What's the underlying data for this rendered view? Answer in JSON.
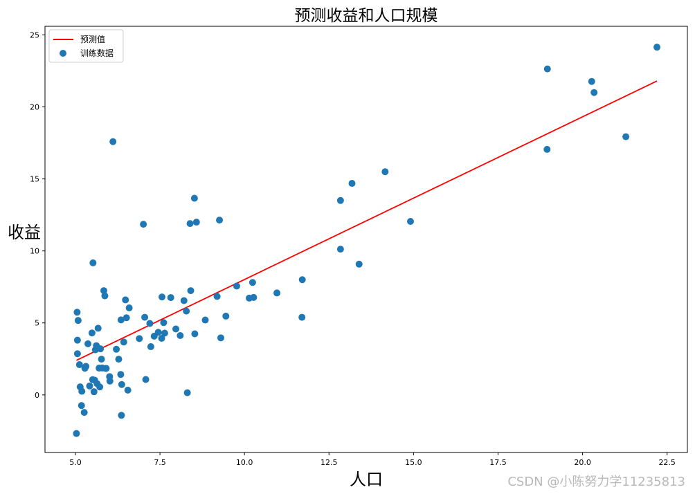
{
  "chart_data": {
    "type": "scatter",
    "title": "预测收益和人口规模",
    "xlabel": "人口",
    "ylabel": "收益",
    "xlim": [
      4.1,
      23.1
    ],
    "ylim": [
      -4.0,
      25.6
    ],
    "xticks": [
      "5.0",
      "7.5",
      "10.0",
      "12.5",
      "15.0",
      "17.5",
      "20.0",
      "22.5"
    ],
    "yticks": [
      "0",
      "5",
      "10",
      "15",
      "20",
      "25"
    ],
    "grid": false,
    "legend_position": "top-left",
    "series": [
      {
        "name": "预测值",
        "type": "line",
        "color": "#ff0000",
        "x": [
          5.03,
          22.2
        ],
        "y": [
          2.4,
          21.8
        ]
      },
      {
        "name": "训练数据",
        "type": "scatter",
        "color": "#1f77b4",
        "x": [
          5.03,
          5.05,
          5.06,
          5.06,
          5.08,
          5.12,
          5.14,
          5.18,
          5.19,
          5.26,
          5.28,
          5.31,
          5.37,
          5.42,
          5.49,
          5.51,
          5.52,
          5.55,
          5.57,
          5.59,
          5.62,
          5.64,
          5.67,
          5.7,
          5.72,
          5.74,
          5.77,
          5.79,
          5.84,
          5.87,
          5.89,
          5.91,
          6.01,
          6.02,
          6.11,
          6.21,
          6.28,
          6.34,
          6.35,
          6.36,
          6.37,
          6.43,
          6.48,
          6.51,
          6.55,
          6.59,
          6.89,
          7.01,
          7.05,
          7.08,
          7.2,
          7.23,
          7.33,
          7.45,
          7.55,
          7.56,
          7.61,
          7.64,
          7.82,
          7.97,
          8.1,
          8.21,
          8.28,
          8.31,
          8.39,
          8.41,
          8.52,
          8.53,
          8.58,
          8.84,
          9.19,
          9.26,
          9.3,
          9.45,
          9.77,
          10.14,
          10.24,
          10.27,
          10.96,
          11.71,
          11.7,
          12.84,
          12.84,
          13.18,
          13.39,
          14.16,
          14.91,
          18.95,
          18.96,
          20.27,
          20.34,
          21.28,
          22.2
        ],
        "y": [
          -2.68,
          5.74,
          3.8,
          2.86,
          5.17,
          2.1,
          0.56,
          -0.74,
          0.25,
          -1.22,
          1.85,
          1.98,
          3.55,
          0.62,
          4.3,
          1.06,
          9.17,
          0.22,
          1.02,
          3.13,
          3.42,
          0.78,
          4.63,
          1.86,
          0.55,
          3.2,
          2.48,
          1.87,
          7.24,
          6.88,
          1.84,
          1.84,
          1.27,
          0.96,
          17.59,
          3.17,
          2.48,
          1.42,
          5.21,
          -1.42,
          0.72,
          3.67,
          6.6,
          5.36,
          0.33,
          6.04,
          3.91,
          11.85,
          5.39,
          1.07,
          4.96,
          3.35,
          4.08,
          4.35,
          3.93,
          6.8,
          5.02,
          4.29,
          6.76,
          4.58,
          4.12,
          6.55,
          5.82,
          0.15,
          11.9,
          7.24,
          13.66,
          4.24,
          12.0,
          5.2,
          6.84,
          12.14,
          3.96,
          5.47,
          7.56,
          6.72,
          7.81,
          6.77,
          7.08,
          8.0,
          5.39,
          13.5,
          10.12,
          14.69,
          9.08,
          15.5,
          12.05,
          17.05,
          22.64,
          21.77,
          21.0,
          17.93,
          24.15
        ]
      }
    ]
  },
  "watermark": "CSDN @小陈努力学11235813"
}
